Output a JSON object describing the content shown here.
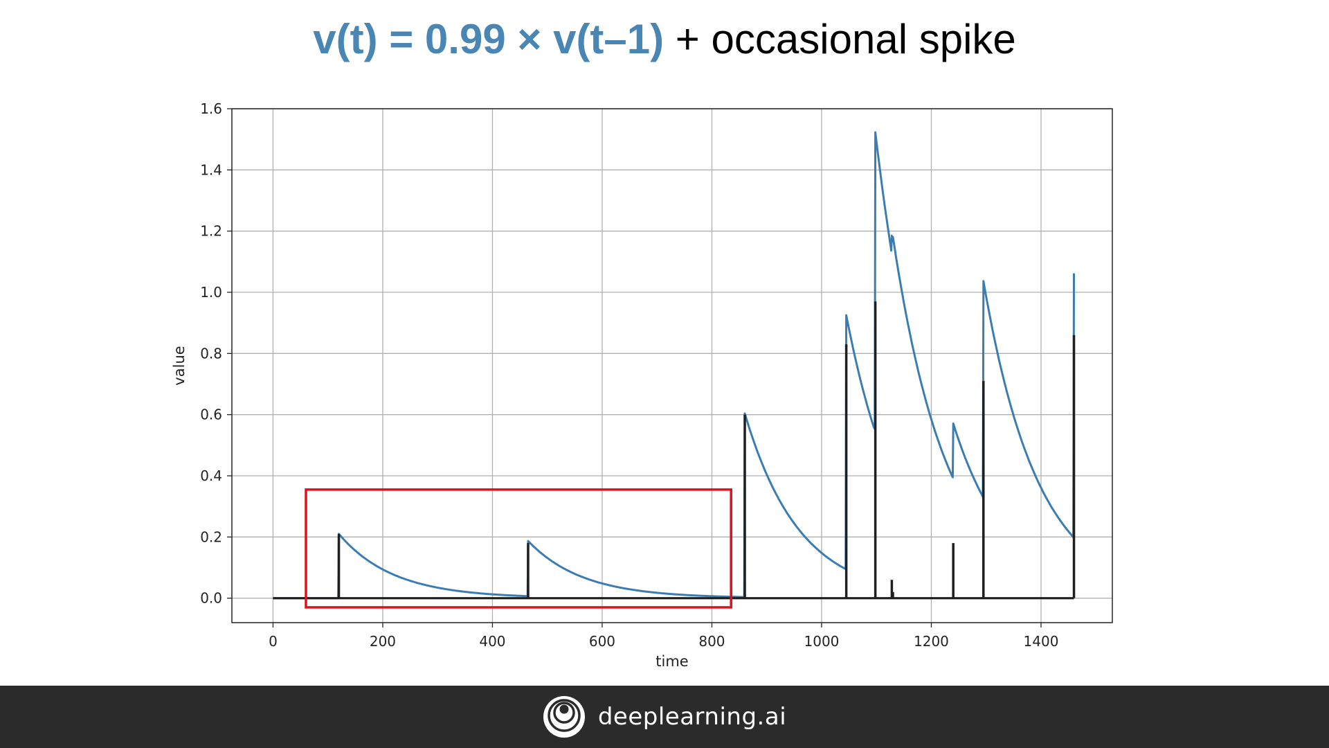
{
  "slide": {
    "title_formula": "v(t) = 0.99 × v(t–1)",
    "title_rest": " + occasional spike",
    "formula_color": "#4a86b4",
    "highlight_color": "#e0101a"
  },
  "footer": {
    "brand": "deeplearning.ai",
    "background": "#2b2b2b",
    "icon": "deeplearning-logo-icon"
  },
  "chart_data": {
    "type": "line",
    "title": "",
    "xlabel": "time",
    "ylabel": "value",
    "xlim": [
      -75,
      1530
    ],
    "ylim": [
      -0.08,
      1.6
    ],
    "xticks": [
      0,
      200,
      400,
      600,
      800,
      1000,
      1200,
      1400
    ],
    "yticks": [
      0.0,
      0.2,
      0.4,
      0.6,
      0.8,
      1.0,
      1.2,
      1.4,
      1.6
    ],
    "grid": true,
    "decay_factor": 0.99,
    "series": [
      {
        "color": "#1f1f1f",
        "spikes": [
          {
            "x": 120,
            "value": 0.21
          },
          {
            "x": 465,
            "value": 0.18
          },
          {
            "x": 860,
            "value": 0.6
          },
          {
            "x": 1045,
            "value": 0.83
          },
          {
            "x": 1098,
            "value": 0.97
          },
          {
            "x": 1128,
            "value": 0.06
          },
          {
            "x": 1130,
            "value": 0.02
          },
          {
            "x": 1240,
            "value": 0.18
          },
          {
            "x": 1295,
            "value": 0.71
          },
          {
            "x": 1460,
            "value": 0.86
          }
        ]
      },
      {
        "color": "#3b7db3",
        "points": [
          [
            0,
            0.0
          ],
          [
            119,
            0.0
          ],
          [
            120,
            0.21
          ],
          [
            464,
            0.007
          ],
          [
            465,
            0.187
          ],
          [
            859,
            0.004
          ],
          [
            860,
            0.604
          ],
          [
            1044,
            0.095
          ],
          [
            1045,
            0.925
          ],
          [
            1097,
            0.553
          ],
          [
            1098,
            1.523
          ],
          [
            1127,
            1.136
          ],
          [
            1128,
            1.185
          ],
          [
            1129,
            1.173
          ],
          [
            1130,
            1.181
          ],
          [
            1239,
            0.395
          ],
          [
            1240,
            0.571
          ],
          [
            1294,
            0.331
          ],
          [
            1295,
            1.037
          ],
          [
            1459,
            0.199
          ],
          [
            1460,
            1.062
          ]
        ]
      }
    ],
    "annotations": [
      {
        "type": "rectangle",
        "x_range": [
          60,
          835
        ],
        "y_range": [
          -0.03,
          0.355
        ],
        "color": "#e0101a"
      }
    ]
  }
}
